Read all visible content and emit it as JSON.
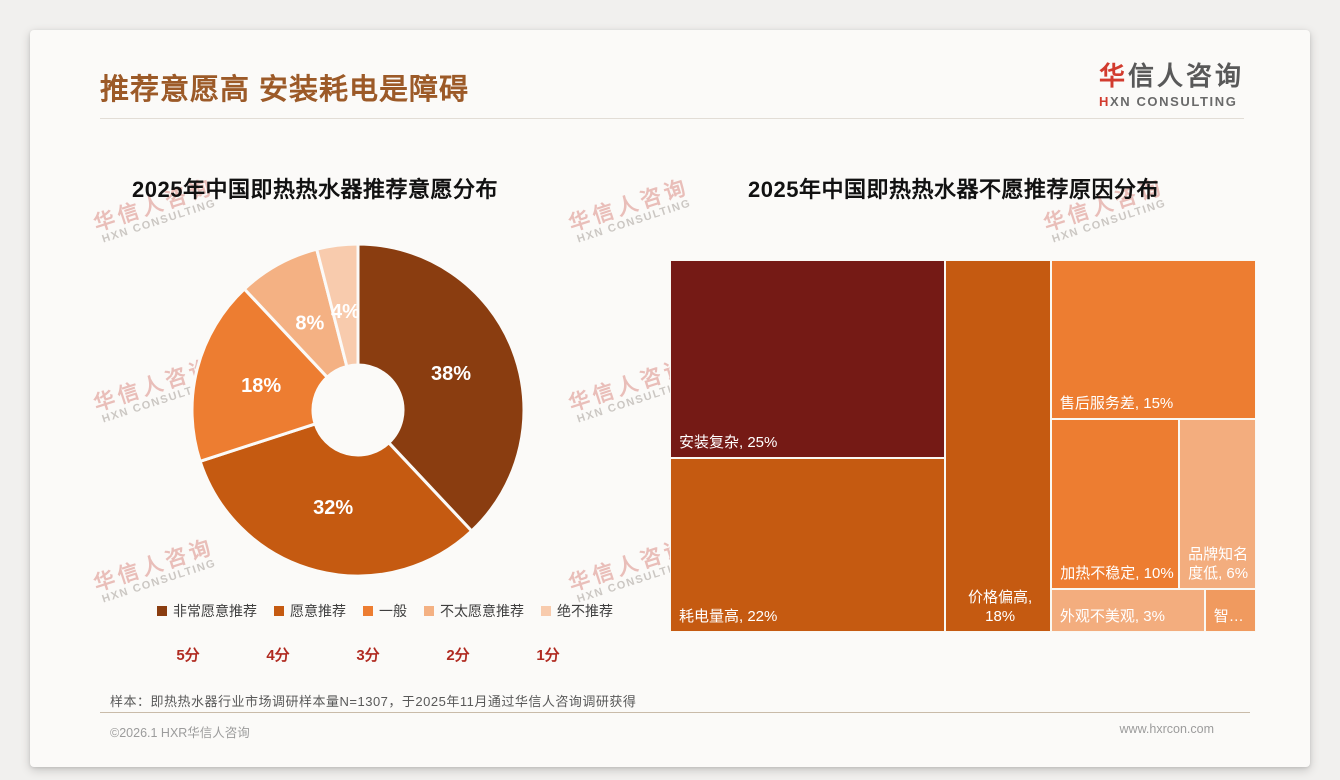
{
  "header": {
    "title": "推荐意愿高 安装耗电是障碍",
    "logo": {
      "zh_red": "华",
      "zh_gray": "信人咨询",
      "en_red": "H",
      "en_gray": "XN CONSULTING"
    }
  },
  "watermark": {
    "line1": "华信人咨询",
    "line2": "HXN CONSULTING"
  },
  "chart_data": [
    {
      "type": "pie",
      "subtype": "donut",
      "title": "2025年中国即热热水器推荐意愿分布",
      "inner_radius_ratio": 0.27,
      "start_angle_deg": 0,
      "direction": "clockwise",
      "legend_position": "bottom",
      "slices": [
        {
          "label": "非常愿意推荐",
          "score_label": "5分",
          "value": 38,
          "data_label": "38%",
          "color": "#8A3D10"
        },
        {
          "label": "愿意推荐",
          "score_label": "4分",
          "value": 32,
          "data_label": "32%",
          "color": "#C55A11"
        },
        {
          "label": "一般",
          "score_label": "3分",
          "value": 18,
          "data_label": "18%",
          "color": "#ED7D31"
        },
        {
          "label": "不太愿意推荐",
          "score_label": "2分",
          "value": 8,
          "data_label": "8%",
          "color": "#F4B183"
        },
        {
          "label": "绝不推荐",
          "score_label": "1分",
          "value": 4,
          "data_label": "4%",
          "color": "#F8CBAD"
        }
      ]
    },
    {
      "type": "treemap",
      "title": "2025年中国即热热水器不愿推荐原因分布",
      "cells": [
        {
          "label": "安装复杂",
          "value": 25,
          "data_label": "安装复杂, 25%",
          "color": "#751A15"
        },
        {
          "label": "耗电量高",
          "value": 22,
          "data_label": "耗电量高, 22%",
          "color": "#C55A11"
        },
        {
          "label": "价格偏高",
          "value": 18,
          "data_label": "价格偏高, 18%",
          "color": "#C55A11"
        },
        {
          "label": "售后服务差",
          "value": 15,
          "data_label": "售后服务差, 15%",
          "color": "#ED7D31"
        },
        {
          "label": "加热不稳定",
          "value": 10,
          "data_label": "加热不稳定, 10%",
          "color": "#ED7D31"
        },
        {
          "label": "品牌知名度低",
          "value": 6,
          "data_label": "品牌知名度低, 6%",
          "color": "#F3AD7E"
        },
        {
          "label": "外观不美观",
          "value": 3,
          "data_label": "外观不美观, 3%",
          "color": "#F3AD7E"
        },
        {
          "label": "智…",
          "value": 1,
          "data_label": "智…",
          "color": "#F09A5F"
        }
      ]
    }
  ],
  "footnote": "样本：即热热水器行业市场调研样本量N=1307，于2025年11月通过华信人咨询调研获得",
  "footer": {
    "left": "©2026.1 HXR华信人咨询",
    "right": "www.hxrcon.com"
  }
}
